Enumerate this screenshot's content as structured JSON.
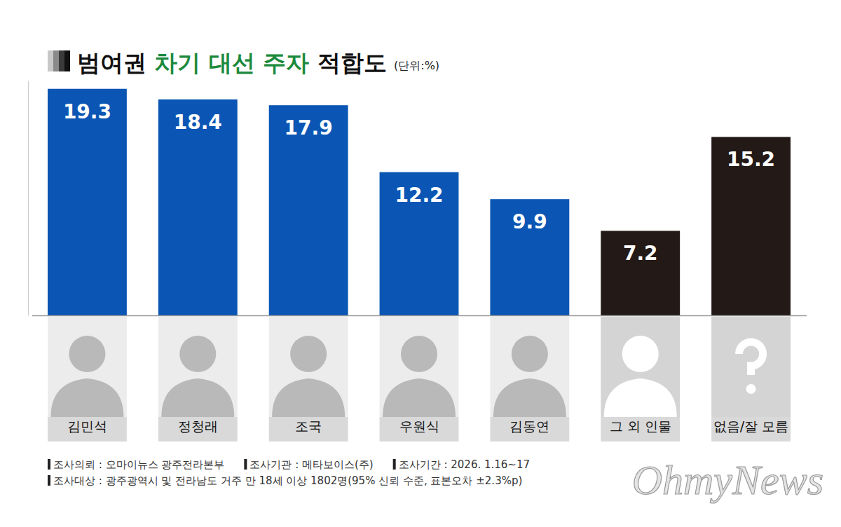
{
  "chart_data": {
    "type": "bar",
    "title": "범여권 차기 대선 주자 적합도",
    "subtitle": "(단위:%)",
    "categories": [
      "김민석",
      "정청래",
      "조국",
      "우원식",
      "김동연",
      "그 외 인물",
      "없음/잘 모름"
    ],
    "values": [
      19.3,
      18.4,
      17.9,
      12.2,
      9.9,
      7.2,
      15.2
    ],
    "colors": [
      "#0b56b4",
      "#0b56b4",
      "#0b56b4",
      "#0b56b4",
      "#0b56b4",
      "#231916",
      "#231916"
    ],
    "ylim": [
      0,
      20
    ],
    "data_labels": true,
    "tick_labels": "x",
    "annotations": [
      "조사의뢰 : 오마이뉴스 광주전라본부",
      "조사기관 : 메타보이스(주)",
      "조사기간 : 2026. 1.16~17",
      "조사대상 : 광주광역시 및 전라남도 거주 만 18세 이상 1802명(95% 신뢰 수준, 표본오차 ±2.3%p)"
    ],
    "credit": "OhmyNews"
  }
}
